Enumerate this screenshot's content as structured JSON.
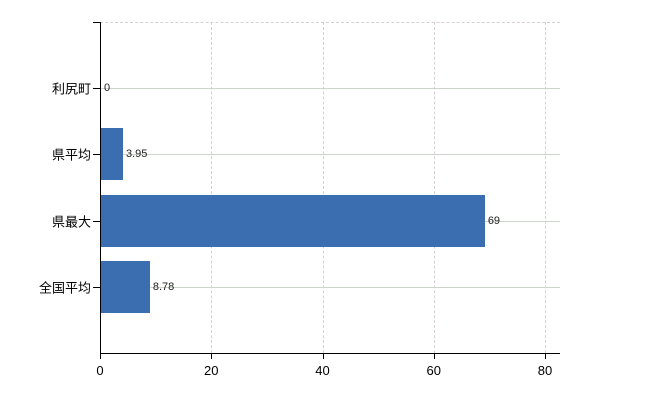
{
  "chart_data": {
    "type": "bar",
    "orientation": "horizontal",
    "title": "",
    "xlabel": "",
    "ylabel": "",
    "categories": [
      "利尻町",
      "県平均",
      "県最大",
      "全国平均"
    ],
    "values": [
      0,
      3.95,
      69,
      8.78
    ],
    "value_labels": [
      "0",
      "3.95",
      "69",
      "8.78"
    ],
    "x_ticks": [
      0,
      20,
      40,
      60,
      80
    ],
    "x_tick_labels": [
      "0",
      "20",
      "40",
      "60",
      "80"
    ],
    "xlim": [
      0,
      82.7
    ],
    "grid": "horizontal solid at categories, vertical dashed at ticks",
    "legend": "none",
    "colors": {
      "bar": "#3b6db1",
      "axis": "#000000",
      "gridline_horizontal": "#ccd4cb",
      "gridline_vertical": "#d6cfd5",
      "value_label_text": "#222222",
      "background": "#ffffff"
    }
  }
}
